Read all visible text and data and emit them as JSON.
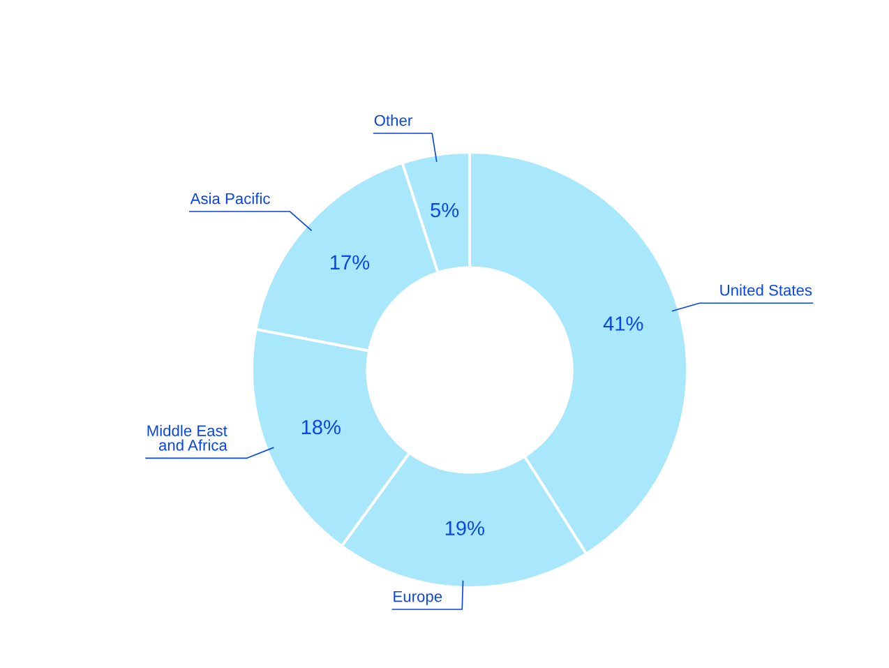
{
  "chart_data": {
    "type": "donut",
    "categories": [
      "United States",
      "Europe",
      "Middle East\nand Africa",
      "Asia Pacific",
      "Other"
    ],
    "values": [
      41,
      19,
      18,
      17,
      5
    ],
    "value_labels": [
      "41%",
      "19%",
      "18%",
      "17%",
      "5%"
    ],
    "colors": [
      "#a8e7fc",
      "#a8e7fc",
      "#a8e7fc",
      "#a8e7fc",
      "#a8e7fc"
    ],
    "legend": false
  }
}
